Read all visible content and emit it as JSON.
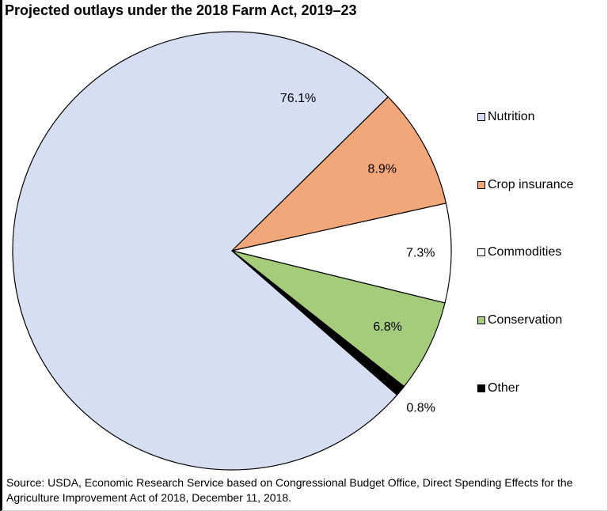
{
  "chart_data": {
    "type": "pie",
    "title": "Projected outlays under the 2018 Farm Act, 2019–23",
    "slices": [
      {
        "label": "Nutrition",
        "value": 76.1,
        "display": "76.1%",
        "color": "#d5dff1"
      },
      {
        "label": "Crop insurance",
        "value": 8.9,
        "display": "8.9%",
        "color": "#f2a77b"
      },
      {
        "label": "Commodities",
        "value": 7.3,
        "display": "7.3%",
        "color": "#ffffff"
      },
      {
        "label": "Conservation",
        "value": 6.8,
        "display": "6.8%",
        "color": "#a4cc7b"
      },
      {
        "label": "Other",
        "value": 0.8,
        "display": "0.8%",
        "color": "#000000"
      }
    ],
    "legend_position": "right"
  },
  "source": "Source: USDA, Economic Research Service based on Congressional Budget Office, Direct Spending Effects for the Agriculture Improvement Act of 2018, December 11, 2018."
}
